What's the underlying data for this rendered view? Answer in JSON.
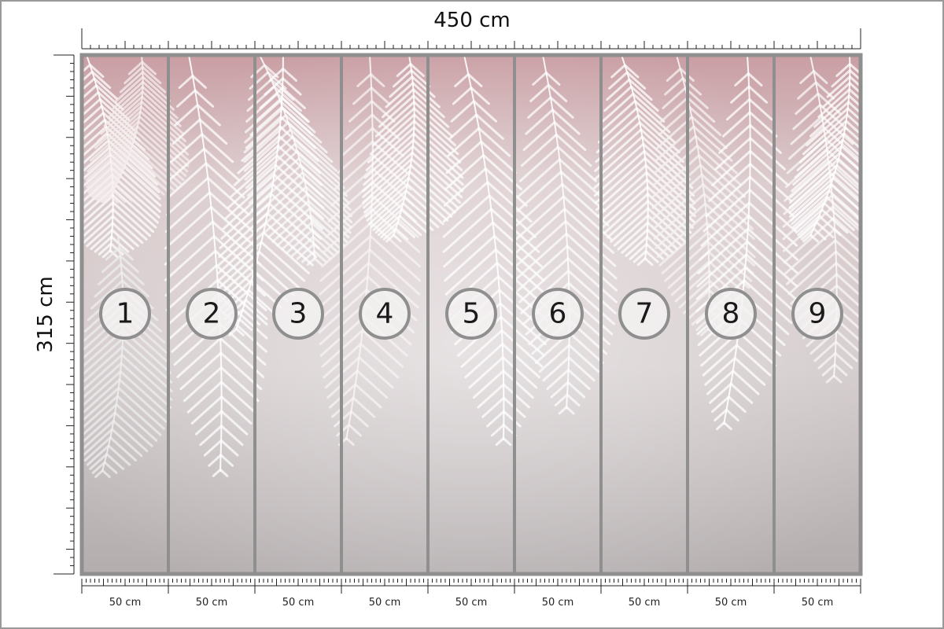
{
  "width_label": "450 cm",
  "height_label": "315 cm",
  "panels": [
    {
      "number": "1",
      "width_label": "50 cm"
    },
    {
      "number": "2",
      "width_label": "50 cm"
    },
    {
      "number": "3",
      "width_label": "50 cm"
    },
    {
      "number": "4",
      "width_label": "50 cm"
    },
    {
      "number": "5",
      "width_label": "50 cm"
    },
    {
      "number": "6",
      "width_label": "50 cm"
    },
    {
      "number": "7",
      "width_label": "50 cm"
    },
    {
      "number": "8",
      "width_label": "50 cm"
    },
    {
      "number": "9",
      "width_label": "50 cm"
    }
  ]
}
